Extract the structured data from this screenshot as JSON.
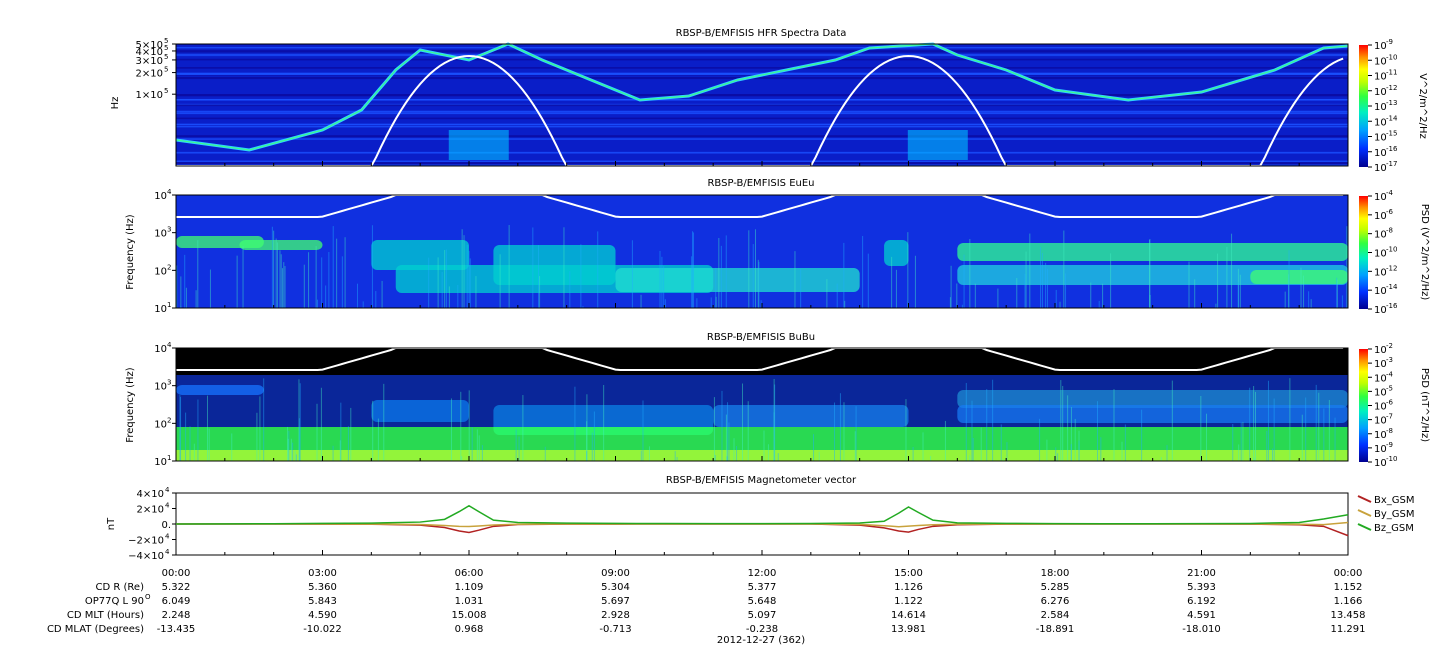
{
  "chart_data": [
    {
      "type": "heatmap",
      "title": "RBSP-B/EMFISIS  HFR Spectra Data",
      "ylabel": "Hz",
      "yscale": "log",
      "ylim": [
        10000,
        500000
      ],
      "ytick_labels": [
        {
          "v": 500000,
          "m": "5",
          "e": "5"
        },
        {
          "v": 400000,
          "m": "4",
          "e": "5"
        },
        {
          "v": 300000,
          "m": "3",
          "e": "5"
        },
        {
          "v": 200000,
          "m": "2",
          "e": "5"
        },
        {
          "v": 100000,
          "m": "1",
          "e": "5"
        }
      ],
      "colorbar": {
        "label": "V^2/m^2/Hz",
        "min_exp": -17,
        "max_exp": -9,
        "tick_exps": [
          -9,
          -10,
          -11,
          -12,
          -13,
          -14,
          -15,
          -16,
          -17
        ],
        "colors": [
          "#0000a0",
          "#0020ff",
          "#00a0ff",
          "#00ffb0",
          "#40ff40",
          "#c0ff00",
          "#ffff00",
          "#ff9000",
          "#ff0000"
        ]
      },
      "overlay_curve": "white",
      "background": "#0a1ec8"
    },
    {
      "type": "heatmap",
      "title": "RBSP-B/EMFISIS  EuEu",
      "ylabel": "Frequency (Hz)",
      "yscale": "log",
      "ylim": [
        10,
        10000
      ],
      "ytick_exps": [
        4,
        3,
        2,
        1
      ],
      "colorbar": {
        "label": "PSD (V^2/m^2/Hz)",
        "min_exp": -16,
        "max_exp": -4,
        "tick_exps": [
          -4,
          -6,
          -8,
          -10,
          -12,
          -14,
          -16
        ],
        "colors": [
          "#0000a0",
          "#0020ff",
          "#00a0ff",
          "#00ffb0",
          "#40ff40",
          "#c0ff00",
          "#ffff00",
          "#ff9000",
          "#ff0000"
        ]
      },
      "overlay_curve": "white",
      "background": "#1030e0"
    },
    {
      "type": "heatmap",
      "title": "RBSP-B/EMFISIS  BuBu",
      "ylabel": "Frequency (Hz)",
      "yscale": "log",
      "ylim": [
        10,
        10000
      ],
      "ytick_exps": [
        4,
        3,
        2,
        1
      ],
      "colorbar": {
        "label": "PSD (nT^2/Hz)",
        "min_exp": -10,
        "max_exp": -2,
        "tick_exps": [
          -2,
          -3,
          -4,
          -5,
          -6,
          -7,
          -8,
          -9,
          -10
        ],
        "colors": [
          "#0000a0",
          "#0020ff",
          "#00a0ff",
          "#00ffb0",
          "#40ff40",
          "#c0ff00",
          "#ffff00",
          "#ff9000",
          "#ff0000"
        ]
      },
      "overlay_curve": "white",
      "background": "#000000"
    },
    {
      "type": "line",
      "title": "RBSP-B/EMFISIS  Magnetometer vector",
      "ylabel": "nT",
      "ylim": [
        -40000,
        40000
      ],
      "ytick_labels": [
        {
          "v": 40000,
          "text": "4×10",
          "e": "4"
        },
        {
          "v": 20000,
          "text": "2×10",
          "e": "4"
        },
        {
          "v": 0,
          "text": "0.",
          "e": ""
        },
        {
          "v": -20000,
          "text": "−2×10",
          "e": "4"
        },
        {
          "v": -40000,
          "text": "−4×10",
          "e": "4"
        }
      ],
      "x_hours": [
        0,
        1,
        2,
        3,
        4,
        5,
        5.5,
        5.8,
        6.0,
        6.2,
        6.5,
        7,
        8,
        9,
        10,
        11,
        12,
        13,
        14,
        14.5,
        14.8,
        15.0,
        15.2,
        15.5,
        16,
        17,
        18,
        19,
        20,
        21,
        22,
        23,
        23.5,
        24
      ],
      "series": [
        {
          "name": "Bx_GSM",
          "color": "#b22222",
          "values": [
            0,
            0,
            0,
            -100,
            -300,
            -1500,
            -4500,
            -9000,
            -11000,
            -8000,
            -3000,
            -700,
            -200,
            -100,
            0,
            0,
            0,
            -50,
            -1500,
            -5000,
            -9000,
            -10500,
            -7000,
            -3000,
            -1000,
            -200,
            0,
            0,
            0,
            0,
            -100,
            -1000,
            -3000,
            -15000
          ]
        },
        {
          "name": "By_GSM",
          "color": "#c8a23c",
          "values": [
            0,
            0,
            0,
            0,
            -100,
            -600,
            -2000,
            -3000,
            -3200,
            -2600,
            -1300,
            -300,
            0,
            0,
            0,
            0,
            0,
            0,
            -500,
            -2200,
            -3500,
            -2800,
            -2000,
            -1000,
            -300,
            0,
            0,
            0,
            0,
            0,
            0,
            -300,
            -800,
            2000
          ]
        },
        {
          "name": "Bz_GSM",
          "color": "#22aa22",
          "values": [
            0,
            200,
            400,
            800,
            1200,
            2500,
            6000,
            16000,
            23500,
            16000,
            5000,
            2000,
            1200,
            800,
            600,
            500,
            500,
            600,
            1300,
            3500,
            14000,
            22000,
            15000,
            5000,
            1500,
            800,
            500,
            400,
            400,
            500,
            700,
            2000,
            6500,
            12000
          ]
        }
      ]
    }
  ],
  "x_axis": {
    "tick_labels": [
      "00:00",
      "03:00",
      "06:00",
      "09:00",
      "12:00",
      "15:00",
      "18:00",
      "21:00",
      "00:00"
    ],
    "date_label": "2012-12-27 (362)"
  },
  "ephemeris": [
    {
      "label": "CD R (Re)",
      "values": [
        "5.322",
        "5.360",
        "1.109",
        "5.304",
        "5.377",
        "1.126",
        "5.285",
        "5.393",
        "1.152"
      ]
    },
    {
      "label": "OP77Q L 90",
      "label_sup": "O",
      "values": [
        "6.049",
        "5.843",
        "1.031",
        "5.697",
        "5.648",
        "1.122",
        "6.276",
        "6.192",
        "1.166"
      ]
    },
    {
      "label": "CD MLT (Hours)",
      "values": [
        "2.248",
        "4.590",
        "15.008",
        "2.928",
        "5.097",
        "14.614",
        "2.584",
        "4.591",
        "13.458"
      ]
    },
    {
      "label": "CD MLAT (Degrees)",
      "values": [
        "-13.435",
        "-10.022",
        "0.968",
        "-0.713",
        "-0.238",
        "13.981",
        "-18.891",
        "-18.010",
        "11.291"
      ]
    }
  ]
}
